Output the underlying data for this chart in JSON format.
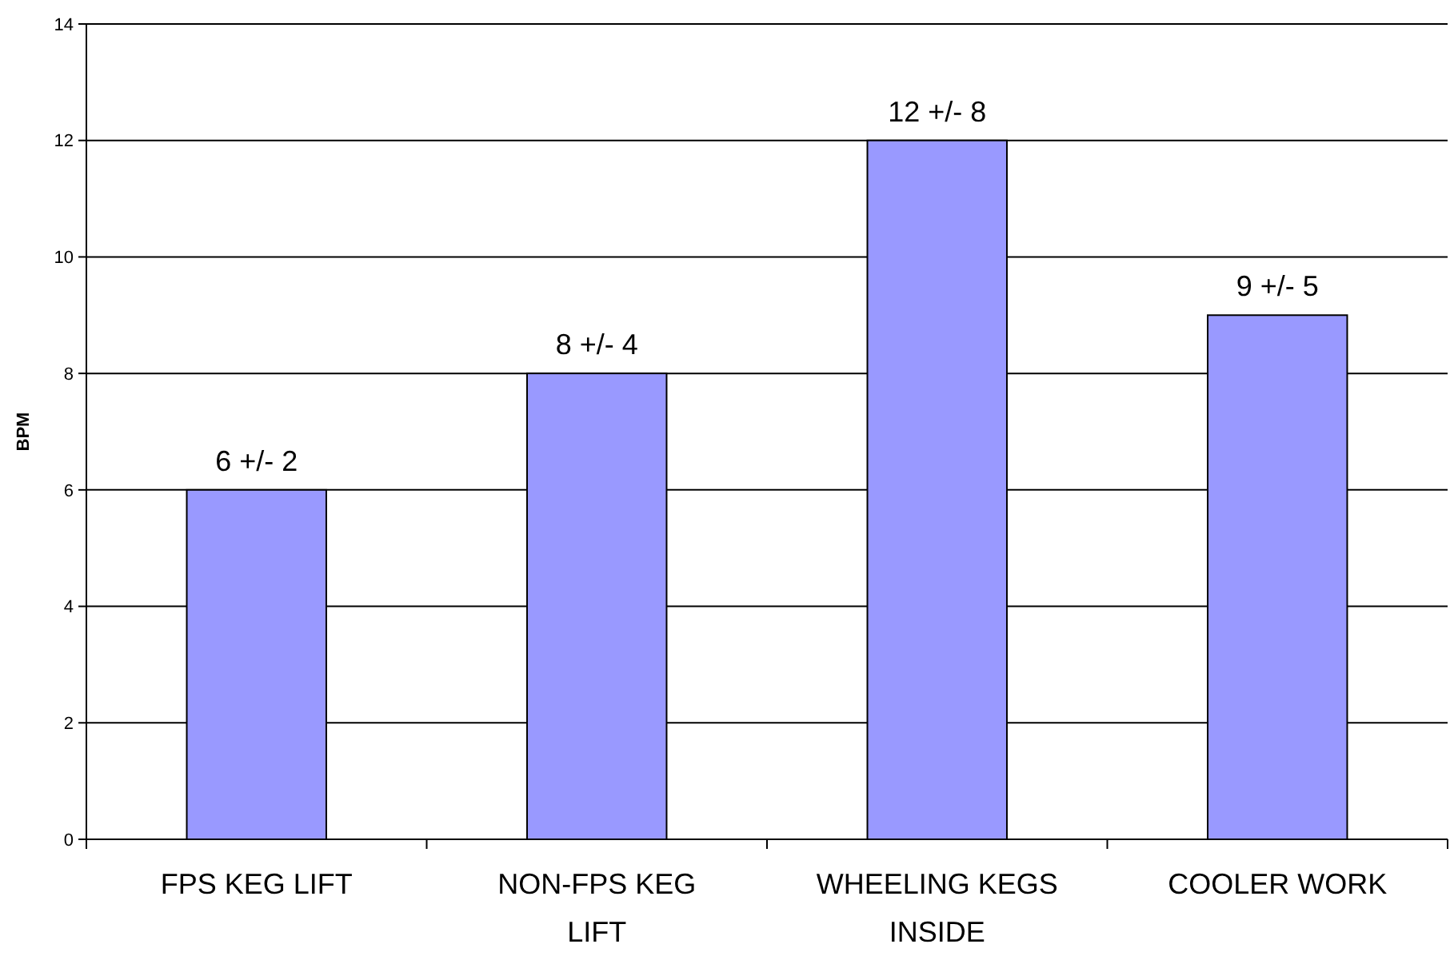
{
  "chart_data": {
    "type": "bar",
    "ylabel": "BPM",
    "categories": [
      "FPS KEG LIFT",
      "NON-FPS KEG LIFT",
      "WHEELING KEGS INSIDE",
      "COOLER WORK"
    ],
    "values": [
      6,
      8,
      12,
      9
    ],
    "value_labels": [
      "6 +/- 2",
      "8 +/- 4",
      "12 +/- 8",
      "9 +/- 5"
    ],
    "color": "#9999ff",
    "ylim": [
      0,
      14
    ],
    "yticks": [
      0,
      2,
      4,
      6,
      8,
      10,
      12,
      14
    ],
    "grid": "y"
  }
}
